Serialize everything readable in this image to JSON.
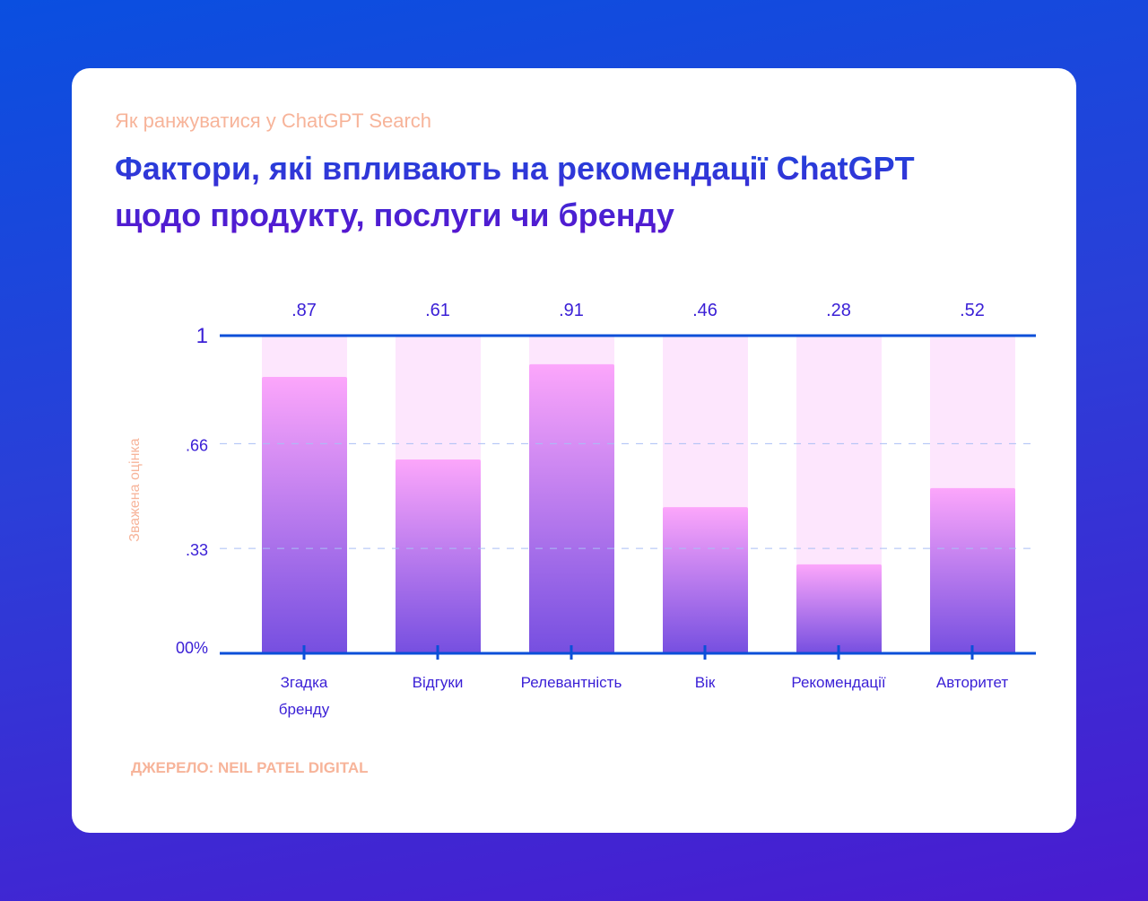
{
  "header": {
    "kicker": "Як ранжуватися у ChatGPT Search",
    "title": "Фактори, які впливають на рекомендації ChatGPT щодо продукту, послуги чи бренду"
  },
  "source": "ДЖЕРЕЛО: NEIL PATEL DIGITAL",
  "colors": {
    "axis": "#0b4fd8",
    "label": "#3a1fd6",
    "bar_top": "#fca6fb",
    "bar_bottom": "#764fe0",
    "bar_track": "#fde6fd",
    "ylabel": "#f7b49a"
  },
  "chart_data": {
    "type": "bar",
    "title": "",
    "ylabel": "Зважена оцінка",
    "xlabel": "",
    "categories": [
      [
        "Згадка",
        "бренду"
      ],
      [
        "Відгуки"
      ],
      [
        "Релевантність"
      ],
      [
        "Вік"
      ],
      [
        "Рекомендації"
      ],
      [
        "Авторитет"
      ]
    ],
    "values": [
      0.87,
      0.61,
      0.91,
      0.46,
      0.28,
      0.52
    ],
    "value_labels": [
      ".87",
      ".61",
      ".91",
      ".46",
      ".28",
      ".52"
    ],
    "ylim": [
      0,
      1
    ],
    "yticks": [
      {
        "value": 0,
        "label": "00%"
      },
      {
        "value": 0.33,
        "label": ".33"
      },
      {
        "value": 0.66,
        "label": ".66"
      },
      {
        "value": 1,
        "label": "1"
      }
    ],
    "grid": "dashed at .33 and .66",
    "legend": "none"
  }
}
